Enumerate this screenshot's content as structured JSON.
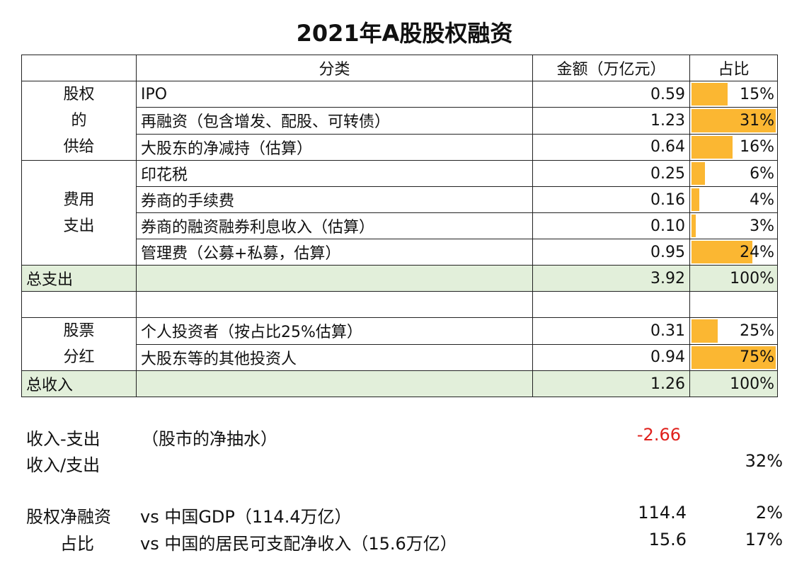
{
  "title": "2021年A股股权融资",
  "headers": [
    "",
    "分类",
    "金额（万亿元）",
    "占比"
  ],
  "groups": [
    {
      "label": [
        "股权",
        "的",
        "供给"
      ],
      "rows": [
        {
          "name": "IPO",
          "amount": "0.59",
          "pct": "15%",
          "bar_fill": 0.45
        },
        {
          "name": "再融资（包含增发、配股、可转债）",
          "amount": "1.23",
          "pct": "31%",
          "bar_fill": 1.0
        },
        {
          "name": "大股东的净减持（估算）",
          "amount": "0.64",
          "pct": "16%",
          "bar_fill": 0.5
        }
      ]
    },
    {
      "label": [
        "费用",
        "支出"
      ],
      "rows": [
        {
          "name": "印花税",
          "amount": "0.25",
          "pct": "6%",
          "bar_fill": 0.19
        },
        {
          "name": "券商的手续费",
          "amount": "0.16",
          "pct": "4%",
          "bar_fill": 0.12
        },
        {
          "name": "券商的融资融券利息收入（估算）",
          "amount": "0.10",
          "pct": "3%",
          "bar_fill": 0.08
        },
        {
          "name": "管理费（公募+私募，估算）",
          "amount": "0.95",
          "pct": "24%",
          "bar_fill": 0.73
        }
      ]
    },
    {
      "label": [
        "股票",
        "分红"
      ],
      "rows": [
        {
          "name": "个人投资者（按占比25%估算）",
          "amount": "0.31",
          "pct": "25%",
          "bar_fill": 0.33
        },
        {
          "name": "大股东等的其他投资人",
          "amount": "0.94",
          "pct": "75%",
          "bar_fill": 1.0
        }
      ]
    }
  ],
  "total_expense": {
    "label": "总支出",
    "amount": "3.92",
    "pct": "100%"
  },
  "total_income": {
    "label": "总收入",
    "amount": "1.26",
    "pct": "100%"
  },
  "summary": {
    "net_label": "收入-支出",
    "net_note": "（股市的净抽水）",
    "net_value": "-2.66",
    "ratio_label": "收入/支出",
    "ratio_value": "32%",
    "share_label1": "股权净融资",
    "share_label2": "占比",
    "gdp_label": "vs 中国GDP（114.4万亿）",
    "gdp_value": "114.4",
    "gdp_pct": "2%",
    "income_label": "vs 中国的居民可支配净收入（15.6万亿）",
    "income_value": "15.6",
    "income_pct": "17%"
  },
  "colors": {
    "bar": "#fbb732",
    "total_bg": "#e2efda",
    "negative": "#e0201c"
  }
}
